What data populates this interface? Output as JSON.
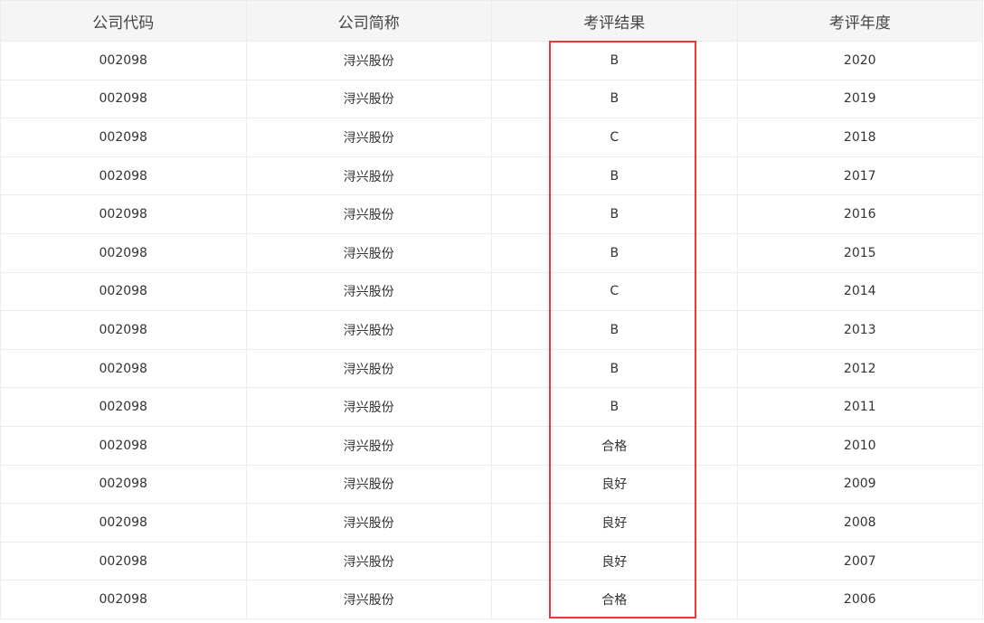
{
  "headers": [
    "公司代码",
    "公司简称",
    "考评结果",
    "考评年度"
  ],
  "highlight_color": "#e83a3a",
  "rows": [
    [
      "002098",
      "浔兴股份",
      "B",
      "2020"
    ],
    [
      "002098",
      "浔兴股份",
      "B",
      "2019"
    ],
    [
      "002098",
      "浔兴股份",
      "C",
      "2018"
    ],
    [
      "002098",
      "浔兴股份",
      "B",
      "2017"
    ],
    [
      "002098",
      "浔兴股份",
      "B",
      "2016"
    ],
    [
      "002098",
      "浔兴股份",
      "B",
      "2015"
    ],
    [
      "002098",
      "浔兴股份",
      "C",
      "2014"
    ],
    [
      "002098",
      "浔兴股份",
      "B",
      "2013"
    ],
    [
      "002098",
      "浔兴股份",
      "B",
      "2012"
    ],
    [
      "002098",
      "浔兴股份",
      "B",
      "2011"
    ],
    [
      "002098",
      "浔兴股份",
      "合格",
      "2010"
    ],
    [
      "002098",
      "浔兴股份",
      "良好",
      "2009"
    ],
    [
      "002098",
      "浔兴股份",
      "良好",
      "2008"
    ],
    [
      "002098",
      "浔兴股份",
      "良好",
      "2007"
    ],
    [
      "002098",
      "浔兴股份",
      "合格",
      "2006"
    ]
  ]
}
